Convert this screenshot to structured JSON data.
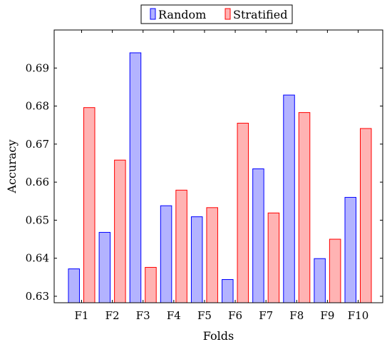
{
  "chart_data": {
    "type": "bar",
    "categories": [
      "F1",
      "F2",
      "F3",
      "F4",
      "F5",
      "F6",
      "F7",
      "F8",
      "F9",
      "F10"
    ],
    "series": [
      {
        "name": "Random",
        "fill": "#b3b3ff",
        "stroke": "#0000ff",
        "values": [
          0.6372,
          0.6468,
          0.694,
          0.6538,
          0.6509,
          0.6344,
          0.6635,
          0.6829,
          0.6399,
          0.656
        ]
      },
      {
        "name": "Stratified",
        "fill": "#ffb3b3",
        "stroke": "#ff0000",
        "values": [
          0.6796,
          0.6658,
          0.6376,
          0.6579,
          0.6533,
          0.6755,
          0.6519,
          0.6783,
          0.645,
          0.6741
        ]
      }
    ],
    "xlabel": "Folds",
    "ylabel": "Accuracy",
    "ylim": [
      0.6283,
      0.7
    ]
  },
  "y_ticks": [
    "0.63",
    "0.64",
    "0.65",
    "0.66",
    "0.67",
    "0.68",
    "0.69"
  ],
  "legend": {
    "position": "top-center",
    "items": [
      "Random",
      "Stratified"
    ]
  }
}
